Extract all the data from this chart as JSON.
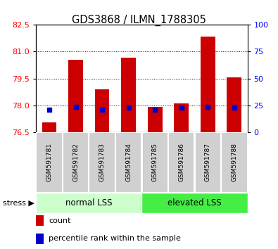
{
  "title": "GDS3868 / ILMN_1788305",
  "samples": [
    "GSM591781",
    "GSM591782",
    "GSM591783",
    "GSM591784",
    "GSM591785",
    "GSM591786",
    "GSM591787",
    "GSM591788"
  ],
  "bar_bottoms": [
    76.5,
    76.5,
    76.5,
    76.5,
    76.5,
    76.5,
    76.5,
    76.5
  ],
  "bar_tops": [
    77.05,
    80.55,
    78.9,
    80.65,
    77.9,
    78.1,
    81.85,
    79.55
  ],
  "blue_values": [
    77.75,
    77.9,
    77.75,
    77.85,
    77.75,
    77.85,
    77.9,
    77.85
  ],
  "ylim_left": [
    76.5,
    82.5
  ],
  "yticks_left": [
    76.5,
    78.0,
    79.5,
    81.0,
    82.5
  ],
  "ylim_right": [
    0,
    100
  ],
  "yticks_right": [
    0,
    25,
    50,
    75,
    100
  ],
  "bar_color": "#cc0000",
  "blue_color": "#0000cc",
  "group1_label": "normal LSS",
  "group2_label": "elevated LSS",
  "group1_color": "#ccffcc",
  "group2_color": "#44ee44",
  "stress_label": "stress",
  "legend_count": "count",
  "legend_percentile": "percentile rank within the sample",
  "tick_label_color_left": "red",
  "tick_label_color_right": "blue",
  "sample_box_color": "#d0d0d0",
  "bar_width": 0.55
}
